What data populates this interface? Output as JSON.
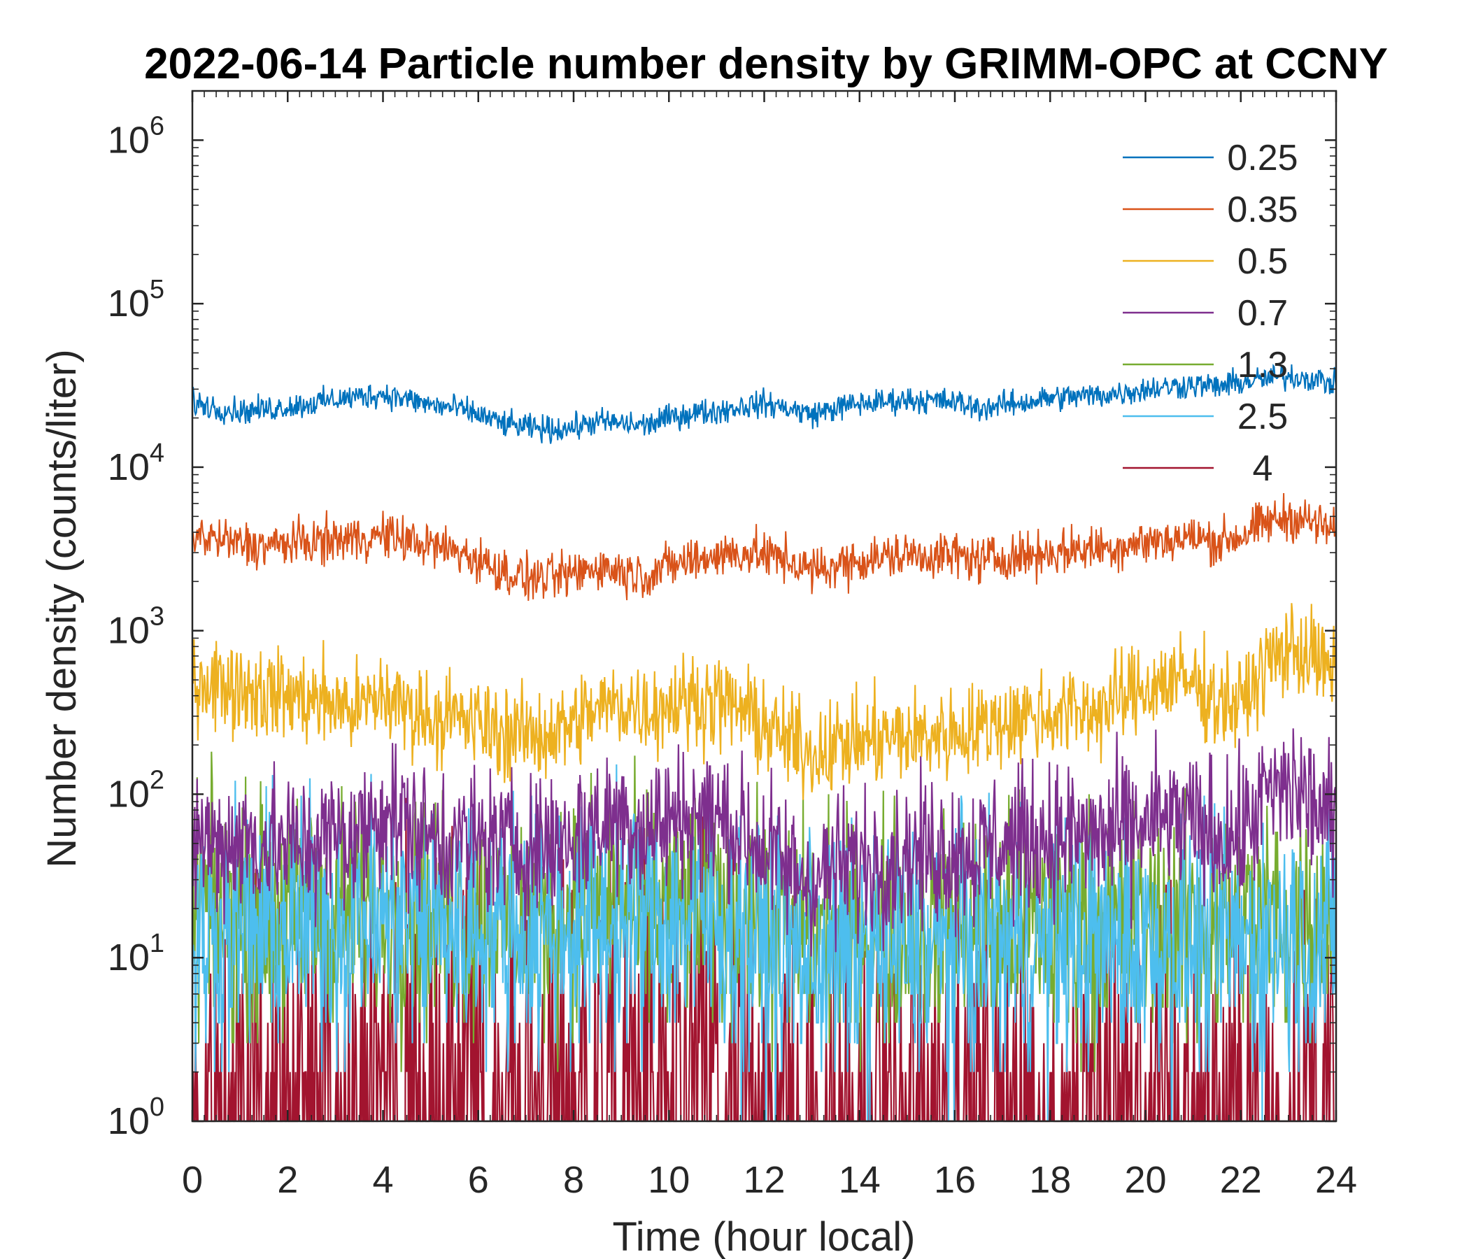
{
  "chart_data": {
    "type": "line",
    "title": "2022-06-14 Particle number density by GRIMM-OPC at CCNY",
    "xlabel": "Time (hour local)",
    "ylabel": "Number density (counts/liter)",
    "xlim": [
      0,
      24
    ],
    "ylim": [
      1,
      2000000
    ],
    "yscale": "log",
    "xticks": [
      0,
      2,
      4,
      6,
      8,
      10,
      12,
      14,
      16,
      18,
      20,
      22,
      24
    ],
    "xtick_labels": [
      "0",
      "2",
      "4",
      "6",
      "8",
      "10",
      "12",
      "14",
      "16",
      "18",
      "20",
      "22",
      "24"
    ],
    "ytick_exponents": [
      0,
      1,
      2,
      3,
      4,
      5,
      6
    ],
    "ytick_base": "10",
    "legend_position": "top-right",
    "series": [
      {
        "name": "0.25",
        "color": "#0072BD",
        "x": [
          0,
          0.5,
          1,
          1.5,
          2,
          2.5,
          3,
          3.5,
          4,
          4.5,
          5,
          5.5,
          6,
          6.5,
          7,
          7.5,
          8,
          8.5,
          9,
          9.5,
          10,
          10.5,
          11,
          11.5,
          12,
          12.5,
          13,
          13.5,
          14,
          14.5,
          15,
          15.5,
          16,
          16.5,
          17,
          17.5,
          18,
          18.5,
          19,
          19.5,
          20,
          20.5,
          21,
          21.5,
          22,
          22.5,
          23,
          23.5,
          24
        ],
        "y": [
          25000,
          23000,
          22000,
          22500,
          23500,
          24500,
          26000,
          27000,
          28000,
          26000,
          24000,
          23000,
          21000,
          18500,
          17500,
          17000,
          17500,
          19000,
          18500,
          18000,
          20000,
          21500,
          22000,
          23500,
          24500,
          23000,
          21000,
          23000,
          24500,
          25000,
          26000,
          25500,
          25000,
          23000,
          24000,
          25000,
          26500,
          27000,
          27500,
          28500,
          30000,
          31000,
          32000,
          31000,
          33000,
          34500,
          36000,
          35000,
          32000
        ]
      },
      {
        "name": "0.35",
        "color": "#D95319",
        "x": [
          0,
          0.5,
          1,
          1.5,
          2,
          2.5,
          3,
          3.5,
          4,
          4.5,
          5,
          5.5,
          6,
          6.5,
          7,
          7.5,
          8,
          8.5,
          9,
          9.5,
          10,
          10.5,
          11,
          11.5,
          12,
          12.5,
          13,
          13.5,
          14,
          14.5,
          15,
          15.5,
          16,
          16.5,
          17,
          17.5,
          18,
          18.5,
          19,
          19.5,
          20,
          20.5,
          21,
          21.5,
          22,
          22.5,
          23,
          23.5,
          24
        ],
        "y": [
          3900,
          3600,
          3400,
          3300,
          3400,
          3500,
          3600,
          3700,
          3800,
          3600,
          3300,
          3100,
          2700,
          2300,
          2100,
          2100,
          2200,
          2500,
          2300,
          2200,
          2500,
          2700,
          2900,
          3000,
          2900,
          2700,
          2300,
          2500,
          2700,
          2800,
          2900,
          2900,
          2900,
          2700,
          2800,
          2900,
          3000,
          3100,
          3200,
          3300,
          3500,
          3600,
          3700,
          3500,
          3800,
          4500,
          5000,
          4600,
          4000
        ]
      },
      {
        "name": "0.5",
        "color": "#EDB120",
        "x": [
          0,
          0.5,
          1,
          1.5,
          2,
          2.5,
          3,
          3.5,
          4,
          4.5,
          5,
          5.5,
          6,
          6.5,
          7,
          7.5,
          8,
          8.5,
          9,
          9.5,
          10,
          10.5,
          11,
          11.5,
          12,
          12.5,
          13,
          13.5,
          14,
          14.5,
          15,
          15.5,
          16,
          16.5,
          17,
          17.5,
          18,
          18.5,
          19,
          19.5,
          20,
          20.5,
          21,
          21.5,
          22,
          22.5,
          23,
          23.5,
          24
        ],
        "y": [
          520,
          480,
          460,
          420,
          400,
          380,
          360,
          330,
          400,
          340,
          300,
          290,
          270,
          240,
          230,
          240,
          270,
          330,
          360,
          330,
          360,
          380,
          370,
          330,
          260,
          210,
          180,
          200,
          210,
          220,
          220,
          230,
          240,
          250,
          280,
          300,
          310,
          320,
          330,
          380,
          450,
          500,
          480,
          380,
          350,
          600,
          800,
          700,
          500
        ]
      },
      {
        "name": "0.7",
        "color": "#7E2F8E",
        "x": [
          0,
          0.5,
          1,
          1.5,
          2,
          2.5,
          3,
          3.5,
          4,
          4.5,
          5,
          5.5,
          6,
          6.5,
          7,
          7.5,
          8,
          8.5,
          9,
          9.5,
          10,
          10.5,
          11,
          11.5,
          12,
          12.5,
          13,
          13.5,
          14,
          14.5,
          15,
          15.5,
          16,
          16.5,
          17,
          17.5,
          18,
          18.5,
          19,
          19.5,
          20,
          20.5,
          21,
          21.5,
          22,
          22.5,
          23,
          23.5,
          24
        ],
        "y": [
          55,
          50,
          52,
          50,
          48,
          50,
          55,
          55,
          85,
          65,
          55,
          52,
          50,
          50,
          48,
          50,
          55,
          65,
          75,
          60,
          70,
          75,
          72,
          60,
          45,
          35,
          30,
          35,
          38,
          40,
          42,
          45,
          45,
          45,
          50,
          52,
          55,
          55,
          55,
          58,
          65,
          70,
          65,
          55,
          55,
          95,
          110,
          90,
          60
        ]
      },
      {
        "name": "1.3",
        "color": "#77AC30",
        "x": [
          0,
          1,
          2,
          3,
          4,
          5,
          6,
          7,
          8,
          9,
          10,
          11,
          12,
          13,
          14,
          15,
          16,
          17,
          18,
          19,
          20,
          21,
          22,
          23,
          24
        ],
        "y": [
          20,
          19,
          18,
          19,
          20,
          19,
          18,
          18,
          19,
          20,
          20,
          19,
          16,
          14,
          14,
          15,
          15,
          15,
          16,
          16,
          16,
          16,
          16,
          18,
          17
        ]
      },
      {
        "name": "2.5",
        "color": "#4DBEEE",
        "x": [
          0,
          1,
          2,
          3,
          4,
          5,
          6,
          7,
          8,
          9,
          10,
          11,
          12,
          13,
          14,
          15,
          16,
          17,
          18,
          19,
          20,
          21,
          22,
          23,
          24
        ],
        "y": [
          12,
          15,
          15,
          16,
          17,
          16,
          15,
          15,
          15,
          16,
          17,
          16,
          12,
          10,
          10,
          11,
          11,
          12,
          12,
          12,
          12,
          12,
          12,
          13,
          12
        ]
      },
      {
        "name": "4",
        "color": "#A2142F",
        "x": [
          0,
          1,
          2,
          3,
          4,
          5,
          6,
          7,
          8,
          9,
          10,
          11,
          12,
          13,
          14,
          15,
          16,
          17,
          18,
          19,
          20,
          21,
          22,
          23,
          24
        ],
        "y": [
          1.5,
          2.2,
          2.5,
          2.5,
          2.6,
          2.5,
          2.4,
          2.3,
          2.6,
          3,
          3.2,
          3,
          2,
          1.6,
          1.8,
          1.9,
          2,
          2,
          2.1,
          2,
          2,
          2,
          2,
          2.1,
          2
        ]
      }
    ]
  }
}
